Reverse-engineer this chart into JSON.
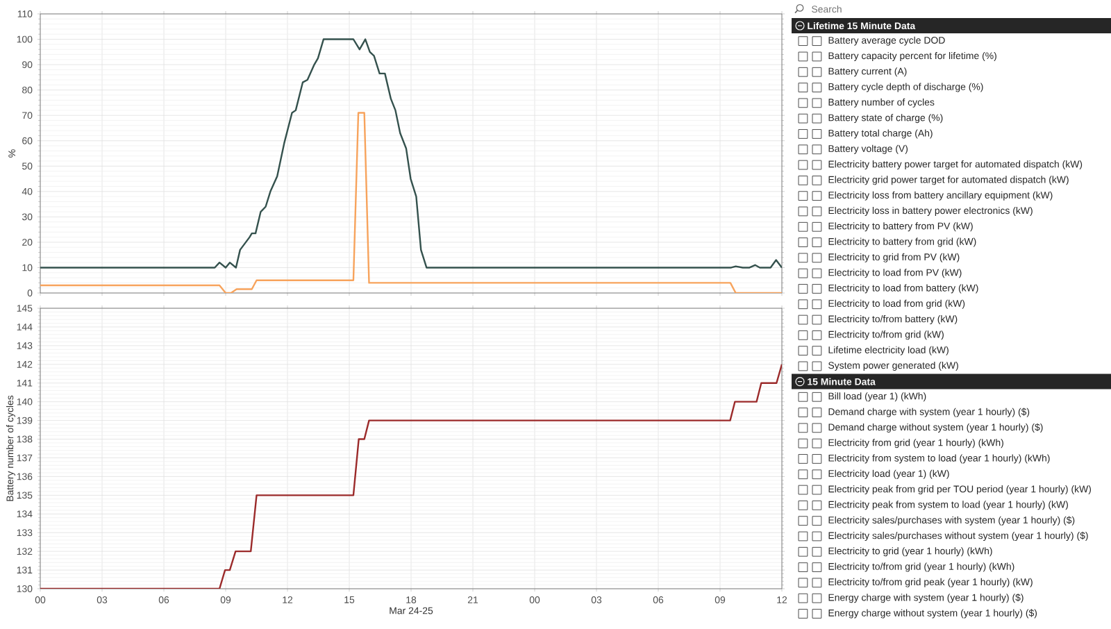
{
  "chart_data": [
    {
      "type": "line",
      "ylabel": "%",
      "xlim": [
        0,
        36
      ],
      "ylim": [
        0,
        110
      ],
      "xticks": [
        0,
        3,
        6,
        9,
        12,
        15,
        18,
        21,
        24,
        27,
        30,
        33,
        36
      ],
      "yticks": [
        0,
        10,
        20,
        30,
        40,
        50,
        60,
        70,
        80,
        90,
        100,
        110
      ],
      "grid": true,
      "tick_labels": "y",
      "series": [
        {
          "color": "#f7a35c",
          "x": [
            0,
            8.7,
            9.0,
            9.26,
            9.53,
            10.27,
            10.5,
            15.2,
            15.44,
            15.73,
            15.96,
            33.5,
            33.76,
            36
          ],
          "values": [
            3,
            3,
            0,
            0,
            1.5,
            1.5,
            5,
            5,
            71,
            71,
            4,
            4,
            0,
            0
          ]
        },
        {
          "color": "#34514d",
          "x": [
            0,
            8.47,
            8.7,
            9.0,
            9.2,
            9.5,
            9.7,
            10.16,
            10.27,
            10.45,
            10.7,
            10.94,
            11.17,
            11.5,
            11.84,
            12.22,
            12.4,
            12.74,
            12.97,
            13.3,
            13.48,
            13.75,
            15.2,
            15.5,
            15.78,
            16.0,
            16.2,
            16.47,
            16.73,
            17.02,
            17.24,
            17.47,
            17.76,
            17.98,
            18.25,
            18.48,
            18.75,
            33.54,
            33.76,
            34.1,
            34.43,
            34.7,
            34.93,
            35.45,
            35.72,
            36
          ],
          "values": [
            10,
            10,
            12,
            10,
            12,
            10,
            17,
            22,
            23.5,
            23.5,
            32,
            34,
            40,
            46,
            59,
            71,
            72,
            83,
            84,
            90,
            92.5,
            100,
            100,
            96,
            100,
            95,
            93.5,
            86.5,
            86.5,
            76.5,
            72,
            63,
            57,
            45,
            38,
            17,
            10,
            10,
            10.5,
            10,
            10,
            11,
            10,
            10,
            13,
            10
          ]
        }
      ]
    },
    {
      "type": "line",
      "ylabel": "Battery number of cycles",
      "xlabel": "Mar 24-25",
      "xlim": [
        0,
        36
      ],
      "ylim": [
        130,
        145
      ],
      "xticks": [
        {
          "value": 0,
          "label": "00"
        },
        {
          "value": 3,
          "label": "03"
        },
        {
          "value": 6,
          "label": "06"
        },
        {
          "value": 9,
          "label": "09"
        },
        {
          "value": 12,
          "label": "12"
        },
        {
          "value": 15,
          "label": "15"
        },
        {
          "value": 18,
          "label": "18"
        },
        {
          "value": 21,
          "label": "21"
        },
        {
          "value": 24,
          "label": "00"
        },
        {
          "value": 27,
          "label": "03"
        },
        {
          "value": 30,
          "label": "06"
        },
        {
          "value": 33,
          "label": "09"
        },
        {
          "value": 36,
          "label": "12"
        }
      ],
      "yticks": [
        130,
        131,
        132,
        133,
        134,
        135,
        136,
        137,
        138,
        139,
        140,
        141,
        142,
        143,
        144,
        145
      ],
      "grid": true,
      "series": [
        {
          "color": "#9b2a2a",
          "x": [
            0,
            8.7,
            8.97,
            9.2,
            9.48,
            10.22,
            10.5,
            15.2,
            15.46,
            15.73,
            15.96,
            33.49,
            33.72,
            34.77,
            35.0,
            35.74,
            36
          ],
          "values": [
            130,
            130,
            131,
            131,
            132,
            132,
            135,
            135,
            138,
            138,
            139,
            139,
            140,
            140,
            141,
            141,
            142
          ]
        }
      ]
    },
    {
      "type": "other",
      "annotations": [
        "Search"
      ]
    },
    {
      "type": "other",
      "title": "Lifetime 15 Minute Data",
      "annotations": [
        "Battery average cycle DOD",
        "Battery capacity percent for lifetime (%)",
        "Battery current (A)",
        "Battery cycle depth of discharge (%)",
        "Battery number of cycles",
        "Battery state of charge (%)",
        "Battery total charge (Ah)",
        "Battery voltage (V)",
        "Electricity battery power target for automated dispatch (kW)",
        "Electricity grid power target for automated dispatch (kW)",
        "Electricity loss from battery ancillary equipment (kW)",
        "Electricity loss in battery power electronics (kW)",
        "Electricity to battery from PV (kW)",
        "Electricity to battery from grid (kW)",
        "Electricity to grid from PV (kW)",
        "Electricity to load from PV (kW)",
        "Electricity to load from battery (kW)",
        "Electricity to load from grid (kW)",
        "Electricity to/from battery (kW)",
        "Electricity to/from grid (kW)",
        "Lifetime electricity load (kW)",
        "System power generated (kW)"
      ]
    },
    {
      "type": "other",
      "title": "15 Minute Data",
      "annotations": [
        "Bill load (year 1) (kWh)",
        "Demand charge with system (year 1 hourly) ($)",
        "Demand charge without system (year 1 hourly) ($)",
        "Electricity from grid (year 1 hourly) (kWh)",
        "Electricity from system to load (year 1 hourly) (kWh)",
        "Electricity load (year 1) (kW)",
        "Electricity peak from grid per TOU period (year 1 hourly) (kW)",
        "Electricity peak from system to load (year 1 hourly) (kW)",
        "Electricity sales/purchases with system (year 1 hourly) ($)",
        "Electricity sales/purchases without system (year 1 hourly) ($)",
        "Electricity to grid (year 1 hourly) (kWh)",
        "Electricity to/from grid (year 1 hourly) (kWh)",
        "Electricity to/from grid peak (year 1 hourly) (kW)",
        "Energy charge with system (year 1 hourly) ($)",
        "Energy charge without system (year 1 hourly) ($)"
      ]
    }
  ]
}
